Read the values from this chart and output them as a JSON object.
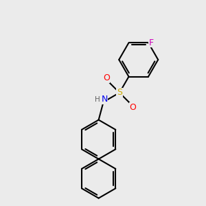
{
  "bg_color": "#ebebeb",
  "bond_color": "#000000",
  "bond_width": 1.5,
  "atom_colors": {
    "S": "#ccaa00",
    "O": "#ff0000",
    "N": "#0000ee",
    "H": "#606060",
    "F": "#cc00bb",
    "C": "#000000"
  },
  "figsize": [
    3.0,
    3.0
  ],
  "dpi": 100,
  "ring_r": 30
}
